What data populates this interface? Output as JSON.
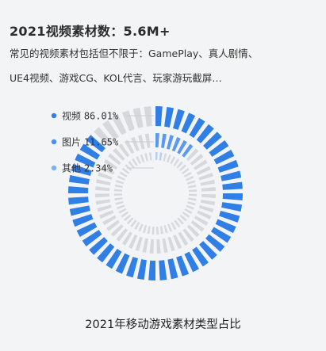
{
  "header": {
    "title": "2021视频素材数：5.6M+",
    "desc_line1": "常见的视频素材包括但不限于：GamePlay、真人剧情、",
    "desc_line2": "UE4视频、游戏CG、KOL代言、玩家游玩截屏…"
  },
  "caption": "2021年移动游戏素材类型占比",
  "chart_data": {
    "type": "pie",
    "variant": "segmented-radial-rings",
    "title": "2021年移动游戏素材类型占比",
    "legend_position": "top-left",
    "series": [
      {
        "name": "视频",
        "value": 86.01,
        "label": "86.01%",
        "color": "#2f7fe6"
      },
      {
        "name": "图片",
        "value": 11.65,
        "label": "11.65%",
        "color": "#4a8ff0"
      },
      {
        "name": "其他",
        "value": 2.34,
        "label": "2.34%",
        "color": "#7db0f5"
      }
    ]
  }
}
